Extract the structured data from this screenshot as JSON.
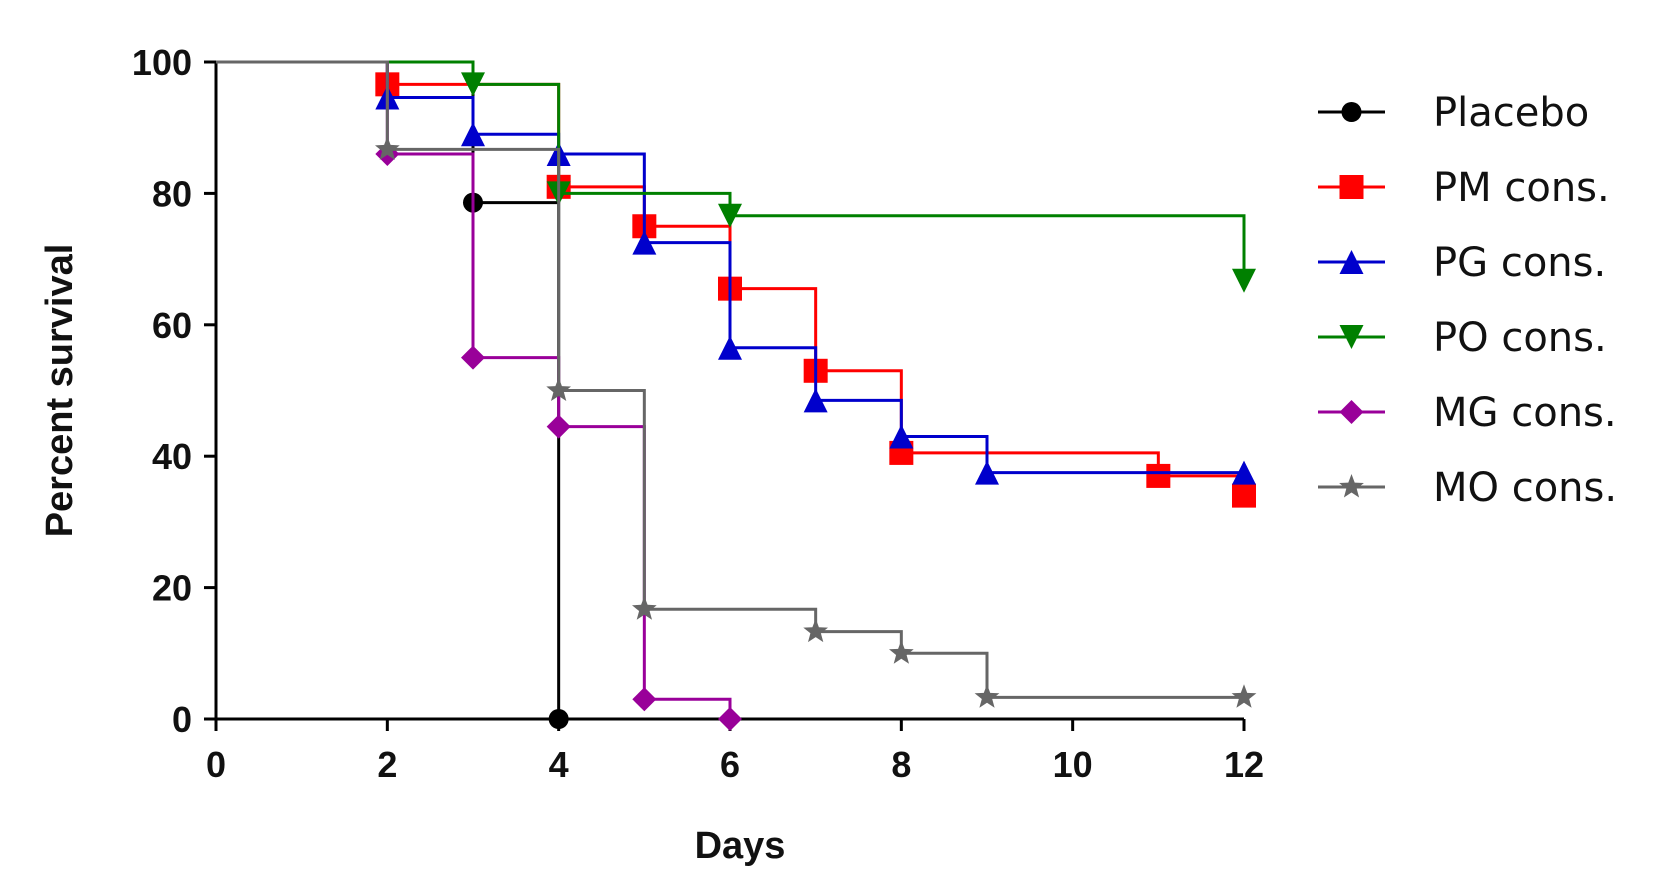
{
  "chart_data": {
    "type": "line",
    "subtype": "kaplan-meier step",
    "title": "",
    "xlabel": "Days",
    "ylabel": "Percent survival",
    "xlim": [
      0,
      12
    ],
    "ylim": [
      0,
      100
    ],
    "x_ticks": [
      "0",
      "2",
      "4",
      "6",
      "8",
      "10",
      "12"
    ],
    "x_tick_values": [
      0,
      2,
      4,
      6,
      8,
      10,
      12
    ],
    "y_ticks": [
      "0",
      "20",
      "40",
      "60",
      "80",
      "100"
    ],
    "y_tick_values": [
      0,
      20,
      40,
      60,
      80,
      100
    ],
    "grid": false,
    "legend_position": "right",
    "series": [
      {
        "name": "Placebo",
        "color": "#000000",
        "marker": "circle",
        "points": [
          [
            0,
            100
          ],
          [
            3,
            78.6
          ],
          [
            4,
            0
          ]
        ]
      },
      {
        "name": "PM cons.",
        "color": "#ff0000",
        "marker": "square",
        "points": [
          [
            0,
            100
          ],
          [
            2,
            96.6
          ],
          [
            4,
            81
          ],
          [
            5,
            75
          ],
          [
            6,
            65.5
          ],
          [
            7,
            53
          ],
          [
            8,
            40.5
          ],
          [
            11,
            37
          ],
          [
            12,
            34
          ]
        ]
      },
      {
        "name": "PG cons.",
        "color": "#0000cc",
        "marker": "triangle-up",
        "points": [
          [
            0,
            100
          ],
          [
            2,
            94.6
          ],
          [
            3,
            89
          ],
          [
            4,
            86
          ],
          [
            5,
            72.5
          ],
          [
            6,
            56.5
          ],
          [
            7,
            48.5
          ],
          [
            8,
            43
          ],
          [
            9,
            37.5
          ],
          [
            12,
            37.5
          ]
        ]
      },
      {
        "name": "PO cons.",
        "color": "#008000",
        "marker": "triangle-down",
        "points": [
          [
            0,
            100
          ],
          [
            3,
            96.6
          ],
          [
            4,
            80
          ],
          [
            6,
            76.6
          ],
          [
            12,
            66.7
          ]
        ]
      },
      {
        "name": "MG cons.",
        "color": "#990099",
        "marker": "diamond",
        "points": [
          [
            0,
            100
          ],
          [
            2,
            86
          ],
          [
            3,
            55
          ],
          [
            4,
            44.5
          ],
          [
            5,
            3
          ],
          [
            6,
            0
          ]
        ]
      },
      {
        "name": "MO cons.",
        "color": "#666666",
        "marker": "star",
        "points": [
          [
            0,
            100
          ],
          [
            2,
            86.7
          ],
          [
            4,
            50
          ],
          [
            5,
            16.7
          ],
          [
            7,
            13.3
          ],
          [
            8,
            10
          ],
          [
            9,
            3.3
          ],
          [
            12,
            3.3
          ]
        ]
      }
    ]
  }
}
